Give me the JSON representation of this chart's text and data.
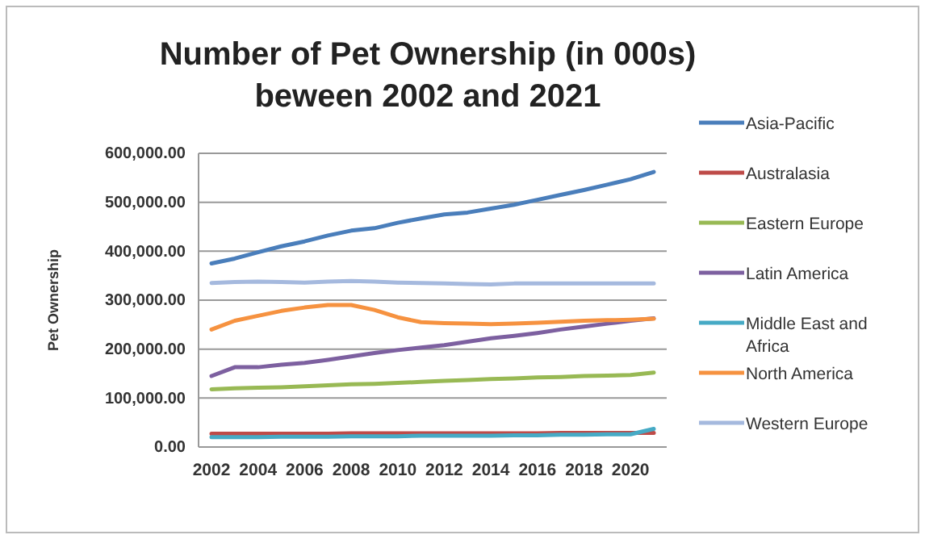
{
  "chart_data": {
    "type": "line",
    "title": "Number of Pet Ownership (in 000s) beween 2002 and 2021",
    "ylabel": "Pet Ownership",
    "categories": [
      "2002",
      null,
      "2004",
      null,
      "2006",
      null,
      "2008",
      null,
      "2010",
      null,
      "2012",
      null,
      "2014",
      null,
      "2016",
      null,
      "2018",
      null,
      "2020",
      null
    ],
    "ylim": [
      0,
      600000
    ],
    "yticks": [
      {
        "value": 0,
        "label": "0.00"
      },
      {
        "value": 100000,
        "label": "100,000.00"
      },
      {
        "value": 200000,
        "label": "200,000.00"
      },
      {
        "value": 300000,
        "label": "300,000.00"
      },
      {
        "value": 400000,
        "label": "400,000.00"
      },
      {
        "value": 500000,
        "label": "500,000.00"
      },
      {
        "value": 600000,
        "label": "600,000.00"
      }
    ],
    "grid": "y",
    "legend": "right",
    "marker": "none",
    "line_style": "solid",
    "series": [
      {
        "name": "Asia-Pacific",
        "color": "#4a7ebb",
        "values": [
          375000,
          385000,
          398000,
          410000,
          420000,
          432000,
          442000,
          447000,
          458000,
          467000,
          475000,
          479000,
          487000,
          495000,
          505000,
          515000,
          525000,
          536000,
          547000,
          562000
        ]
      },
      {
        "name": "Australasia",
        "color": "#be4b48",
        "values": [
          27000,
          27000,
          27000,
          27000,
          27000,
          27000,
          28000,
          28000,
          28000,
          28000,
          28000,
          28000,
          28000,
          28000,
          28000,
          29000,
          29000,
          29000,
          29000,
          29000
        ]
      },
      {
        "name": "Eastern Europe",
        "color": "#98b954",
        "values": [
          118000,
          120000,
          121000,
          122000,
          124000,
          126000,
          128000,
          129000,
          131000,
          133000,
          135000,
          137000,
          139000,
          140000,
          142000,
          143000,
          145000,
          146000,
          147000,
          152000
        ]
      },
      {
        "name": "Latin America",
        "color": "#7d60a0",
        "values": [
          145000,
          163000,
          163000,
          168000,
          172000,
          178000,
          185000,
          192000,
          198000,
          203000,
          208000,
          215000,
          222000,
          227000,
          233000,
          240000,
          246000,
          252000,
          258000,
          263000
        ]
      },
      {
        "name": "Middle East and Africa",
        "color": "#46aac5",
        "values": [
          20000,
          20000,
          20000,
          21000,
          21000,
          21000,
          22000,
          22000,
          22000,
          23000,
          23000,
          23000,
          23000,
          24000,
          24000,
          25000,
          25000,
          26000,
          26000,
          37000
        ]
      },
      {
        "name": "North America",
        "color": "#f69240",
        "values": [
          240000,
          258000,
          268000,
          278000,
          285000,
          290000,
          290000,
          280000,
          265000,
          255000,
          253000,
          252000,
          251000,
          252000,
          254000,
          256000,
          258000,
          259000,
          260000,
          262000
        ]
      },
      {
        "name": "Western Europe",
        "color": "#a5b9de",
        "values": [
          335000,
          337000,
          338000,
          337000,
          336000,
          338000,
          339000,
          338000,
          336000,
          335000,
          334000,
          333000,
          332000,
          334000,
          334000,
          334000,
          334000,
          334000,
          334000,
          334000
        ]
      }
    ]
  }
}
